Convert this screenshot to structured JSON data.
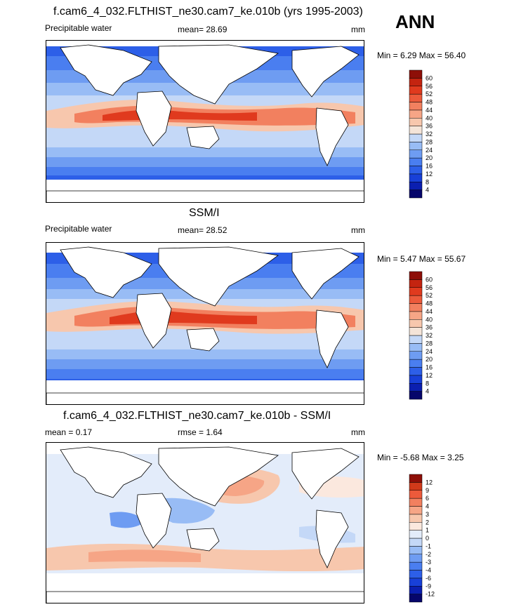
{
  "season": "ANN",
  "colors": {
    "abs_scale": [
      "#06066b",
      "#0b1fb0",
      "#1840d8",
      "#2d5fe8",
      "#4a7ef0",
      "#6e9cf2",
      "#98bcf5",
      "#c4d8f7",
      "#f4e4d8",
      "#f7c7ad",
      "#f6a586",
      "#f2805f",
      "#ec5a3b",
      "#e03a1e",
      "#c42410",
      "#8e0f08"
    ],
    "diff_scale": [
      "#06066b",
      "#0b1fb0",
      "#1840d8",
      "#2d5fe8",
      "#4a7ef0",
      "#6e9cf2",
      "#98bcf5",
      "#c4d8f7",
      "#e3ecfa",
      "#fbe8de",
      "#f7c7ad",
      "#f6a586",
      "#f2805f",
      "#ec5a3b",
      "#d13a1a",
      "#8e0f08"
    ]
  },
  "chart_data": [
    {
      "type": "heatmap",
      "panel": "model",
      "title": "f.cam6_4_032.FLTHIST_ne30.cam7_ke.010b (yrs 1995-2003)",
      "variable": "Precipitable water",
      "stat1_label": "mean=",
      "stat1_value": "28.69",
      "units": "mm",
      "min_label": "Min =",
      "min_value": "6.29",
      "max_label": "Max =",
      "max_value": "56.40",
      "levels": [
        "4",
        "8",
        "12",
        "16",
        "20",
        "24",
        "28",
        "32",
        "36",
        "40",
        "44",
        "48",
        "52",
        "56",
        "60"
      ]
    },
    {
      "type": "heatmap",
      "panel": "observations",
      "title": "SSM/I",
      "variable": "Precipitable water",
      "stat1_label": "mean=",
      "stat1_value": "28.52",
      "units": "mm",
      "min_label": "Min =",
      "min_value": "5.47",
      "max_label": "Max =",
      "max_value": "55.67",
      "levels": [
        "4",
        "8",
        "12",
        "16",
        "20",
        "24",
        "28",
        "32",
        "36",
        "40",
        "44",
        "48",
        "52",
        "56",
        "60"
      ]
    },
    {
      "type": "heatmap",
      "panel": "difference",
      "title": "f.cam6_4_032.FLTHIST_ne30.cam7_ke.010b - SSM/I",
      "stat1_label": "mean =",
      "stat1_value": "0.17",
      "stat2_label": "rmse =",
      "stat2_value": "1.64",
      "units": "mm",
      "min_label": "Min =",
      "min_value": "-5.68",
      "max_label": "Max =",
      "max_value": "3.25",
      "levels": [
        "-12",
        "-9",
        "-6",
        "-4",
        "-3",
        "-2",
        "-1",
        "0",
        "1",
        "2",
        "3",
        "4",
        "6",
        "9",
        "12"
      ]
    }
  ]
}
